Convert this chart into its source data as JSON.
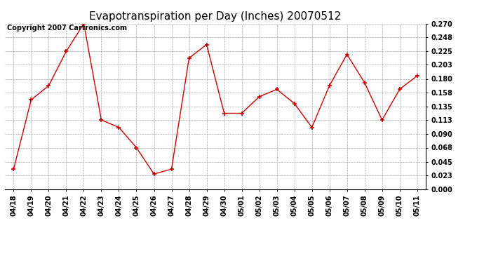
{
  "title": "Evapotranspiration per Day (Inches) 20070512",
  "copyright_text": "Copyright 2007 Cartronics.com",
  "x_labels": [
    "04/18",
    "04/19",
    "04/20",
    "04/21",
    "04/22",
    "04/23",
    "04/24",
    "04/25",
    "04/26",
    "04/27",
    "04/28",
    "04/29",
    "04/30",
    "05/01",
    "05/02",
    "05/03",
    "05/04",
    "05/05",
    "05/06",
    "05/07",
    "05/08",
    "05/09",
    "05/10",
    "05/11"
  ],
  "y_values": [
    0.033,
    0.146,
    0.169,
    0.225,
    0.27,
    0.113,
    0.101,
    0.068,
    0.025,
    0.033,
    0.214,
    0.236,
    0.124,
    0.124,
    0.151,
    0.163,
    0.14,
    0.101,
    0.169,
    0.22,
    0.174,
    0.113,
    0.163,
    0.185
  ],
  "y_ticks": [
    0.0,
    0.023,
    0.045,
    0.068,
    0.09,
    0.113,
    0.135,
    0.158,
    0.18,
    0.203,
    0.225,
    0.248,
    0.27
  ],
  "line_color": "#cc0000",
  "marker": "+",
  "marker_size": 5,
  "marker_color": "#cc0000",
  "bg_color": "#ffffff",
  "grid_color": "#aaaaaa",
  "title_fontsize": 11,
  "tick_fontsize": 7,
  "copyright_fontsize": 7
}
